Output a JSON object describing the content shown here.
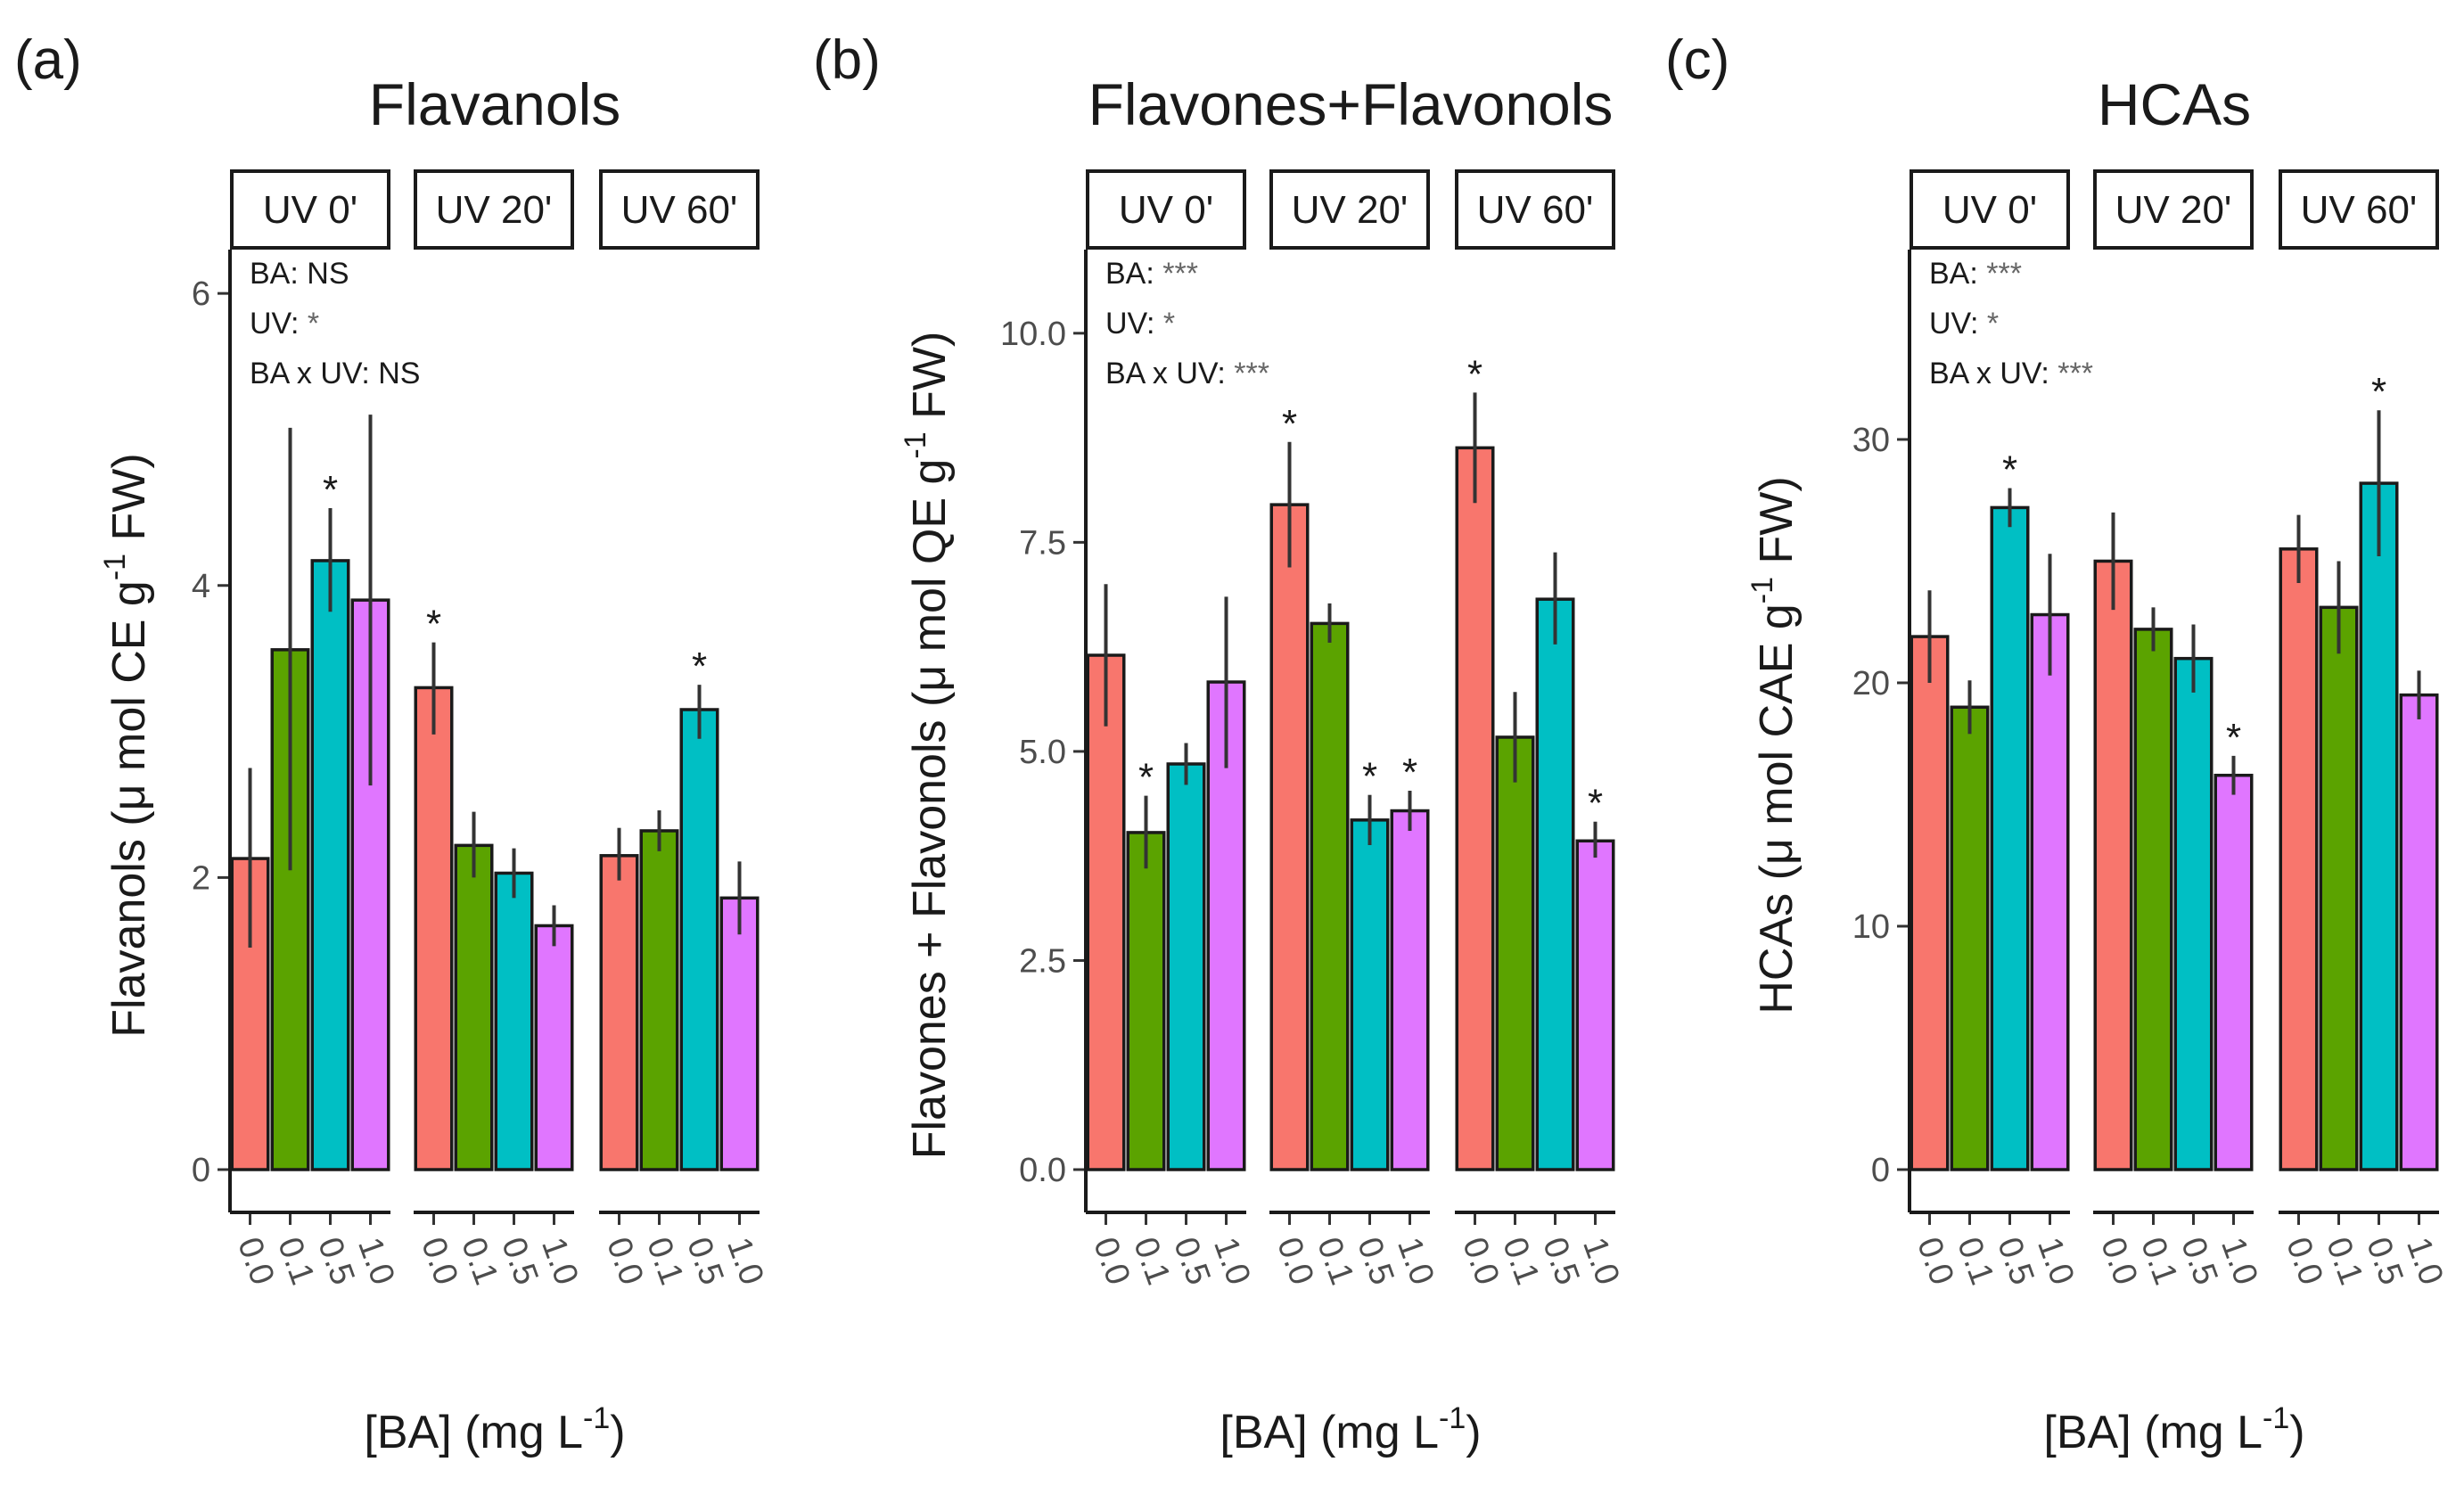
{
  "chart_data": [
    {
      "type": "bar",
      "panel": "(a)",
      "title": "Flavanols",
      "ylabel": "Flavanols  (μ mol CE g^-1 FW)",
      "xlabel": "[BA] (mg L^-1)",
      "ylim": [
        0,
        6.3
      ],
      "yticks": [
        0,
        2,
        4,
        6
      ],
      "ytick_labels": [
        "0",
        "2",
        "4",
        "6"
      ],
      "categories": [
        "0.0",
        "0.1",
        "0.5",
        "1.0"
      ],
      "colors": [
        "#F8766D",
        "#5BA300",
        "#00BFC4",
        "#E076FF"
      ],
      "facets": [
        {
          "label": "UV 0'",
          "values": [
            2.13,
            3.56,
            4.17,
            3.9
          ],
          "err_low": [
            1.52,
            2.05,
            3.82,
            2.63
          ],
          "err_high": [
            2.75,
            5.08,
            4.53,
            5.17
          ],
          "sig": [
            false,
            false,
            true,
            false
          ]
        },
        {
          "label": "UV 20'",
          "values": [
            3.3,
            2.22,
            2.03,
            1.67
          ],
          "err_low": [
            2.98,
            2.0,
            1.86,
            1.53
          ],
          "err_high": [
            3.61,
            2.45,
            2.2,
            1.81
          ],
          "sig": [
            true,
            false,
            false,
            false
          ]
        },
        {
          "label": "UV 60'",
          "values": [
            2.15,
            2.32,
            3.15,
            1.86
          ],
          "err_low": [
            1.98,
            2.18,
            2.95,
            1.61
          ],
          "err_high": [
            2.34,
            2.46,
            3.32,
            2.11
          ],
          "sig": [
            false,
            false,
            true,
            false
          ]
        }
      ],
      "stats": [
        {
          "name": "BA:",
          "value": "NS"
        },
        {
          "name": "UV:",
          "value": "*"
        },
        {
          "name": "BA x UV:",
          "value": "NS"
        }
      ]
    },
    {
      "type": "bar",
      "panel": "(b)",
      "title": "Flavones+Flavonols",
      "ylabel": "Flavones + Flavonols  (μ mol QE g^-1 FW)",
      "xlabel": "[BA] (mg L^-1)",
      "ylim": [
        0,
        11.0
      ],
      "yticks": [
        0,
        2.5,
        5,
        7.5,
        10
      ],
      "ytick_labels": [
        "0.0",
        "2.5",
        "5.0",
        "7.5",
        "10.0"
      ],
      "categories": [
        "0.0",
        "0.1",
        "0.5",
        "1.0"
      ],
      "colors": [
        "#F8766D",
        "#5BA300",
        "#00BFC4",
        "#E076FF"
      ],
      "facets": [
        {
          "label": "UV 0'",
          "values": [
            6.15,
            4.03,
            4.85,
            5.83
          ],
          "err_low": [
            5.3,
            3.6,
            4.6,
            4.8
          ],
          "err_high": [
            7.0,
            4.47,
            5.1,
            6.85
          ],
          "sig": [
            false,
            true,
            false,
            false
          ]
        },
        {
          "label": "UV 20'",
          "values": [
            7.95,
            6.53,
            4.18,
            4.29
          ],
          "err_low": [
            7.2,
            6.3,
            3.88,
            4.05
          ],
          "err_high": [
            8.7,
            6.77,
            4.48,
            4.53
          ],
          "sig": [
            true,
            false,
            true,
            true
          ]
        },
        {
          "label": "UV 60'",
          "values": [
            8.63,
            5.17,
            6.82,
            3.93
          ],
          "err_low": [
            7.97,
            4.63,
            6.28,
            3.73
          ],
          "err_high": [
            9.29,
            5.71,
            7.38,
            4.16
          ],
          "sig": [
            true,
            false,
            false,
            true
          ]
        }
      ],
      "stats": [
        {
          "name": "BA:",
          "value": "***"
        },
        {
          "name": "UV:",
          "value": "*"
        },
        {
          "name": "BA x UV:",
          "value": "***"
        }
      ]
    },
    {
      "type": "bar",
      "panel": "(c)",
      "title": "HCAs",
      "ylabel": "HCAs  (μ mol CAE g^-1 FW)",
      "xlabel": "[BA] (mg L^-1)",
      "ylim": [
        0,
        37.8
      ],
      "yticks": [
        0,
        10,
        20,
        30
      ],
      "ytick_labels": [
        "0",
        "10",
        "20",
        "30"
      ],
      "categories": [
        "0.0",
        "0.1",
        "0.5",
        "1.0"
      ],
      "colors": [
        "#F8766D",
        "#5BA300",
        "#00BFC4",
        "#E076FF"
      ],
      "facets": [
        {
          "label": "UV 0'",
          "values": [
            21.9,
            19.0,
            27.2,
            22.8
          ],
          "err_low": [
            20.0,
            17.9,
            26.4,
            20.3
          ],
          "err_high": [
            23.8,
            20.1,
            28.0,
            25.3
          ],
          "sig": [
            false,
            false,
            true,
            false
          ]
        },
        {
          "label": "UV 20'",
          "values": [
            25.0,
            22.2,
            21.0,
            16.2
          ],
          "err_low": [
            23.0,
            21.3,
            19.6,
            15.4
          ],
          "err_high": [
            27.0,
            23.1,
            22.4,
            17.0
          ],
          "sig": [
            false,
            false,
            false,
            true
          ]
        },
        {
          "label": "UV 60'",
          "values": [
            25.5,
            23.1,
            28.2,
            19.5
          ],
          "err_low": [
            24.1,
            21.2,
            25.2,
            18.5
          ],
          "err_high": [
            26.9,
            25.0,
            31.2,
            20.5
          ],
          "sig": [
            false,
            false,
            true,
            false
          ]
        }
      ],
      "stats": [
        {
          "name": "BA:",
          "value": "***"
        },
        {
          "name": "UV:",
          "value": "*"
        },
        {
          "name": "BA x UV:",
          "value": "***"
        }
      ]
    }
  ]
}
